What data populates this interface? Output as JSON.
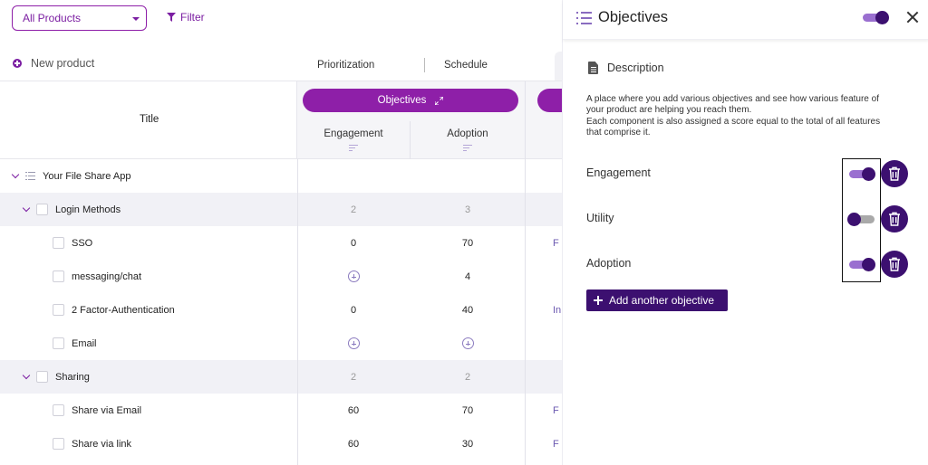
{
  "toolbar": {
    "product_select": "All Products",
    "filter_label": "Filter",
    "new_product_label": "New product",
    "view_tabs": [
      "Prioritization",
      "Schedule"
    ]
  },
  "table": {
    "title_header": "Title",
    "objectives_header": "Objectives",
    "columns": [
      "Engagement",
      "Adoption"
    ],
    "rows": [
      {
        "type": "app",
        "title": "Your File Share App",
        "engagement": "",
        "adoption": "",
        "extra": ""
      },
      {
        "type": "group",
        "title": "Login Methods",
        "engagement": "2",
        "adoption": "3",
        "extra": ""
      },
      {
        "type": "item",
        "title": "SSO",
        "engagement": "0",
        "adoption": "70",
        "extra": "F"
      },
      {
        "type": "item",
        "title": "messaging/chat",
        "engagement": "+",
        "adoption": "4",
        "extra": ""
      },
      {
        "type": "item",
        "title": "2 Factor-Authentication",
        "engagement": "0",
        "adoption": "40",
        "extra": "In"
      },
      {
        "type": "item",
        "title": "Email",
        "engagement": "+",
        "adoption": "+",
        "extra": ""
      },
      {
        "type": "group",
        "title": "Sharing",
        "engagement": "2",
        "adoption": "2",
        "extra": ""
      },
      {
        "type": "item",
        "title": "Share via Email",
        "engagement": "60",
        "adoption": "70",
        "extra": "F"
      },
      {
        "type": "item",
        "title": "Share via link",
        "engagement": "60",
        "adoption": "30",
        "extra": "F"
      }
    ]
  },
  "panel": {
    "title": "Objectives",
    "description_title": "Description",
    "description_lines": [
      "A place where you add various objectives and see how various feature of",
      "your product are helping you reach them.",
      "Each component is also assigned a score equal to the total of all features",
      "that comprise it."
    ],
    "objectives": [
      {
        "name": "Engagement",
        "enabled": true
      },
      {
        "name": "Utility",
        "enabled": false
      },
      {
        "name": "Adoption",
        "enabled": true
      }
    ],
    "add_button": "Add another objective"
  },
  "colors": {
    "accent": "#8e1fa8",
    "deep_purple": "#3c1070",
    "toggle_track_on": "#9a6fd0",
    "group_row_bg": "#f1f1f6"
  },
  "icons": [
    "caret-down-icon",
    "filter-icon",
    "plus-icon",
    "list-icon",
    "expand-icon",
    "sort-icon",
    "chevron-down-icon",
    "document-icon",
    "close-icon",
    "trash-icon",
    "add-circle-icon"
  ]
}
